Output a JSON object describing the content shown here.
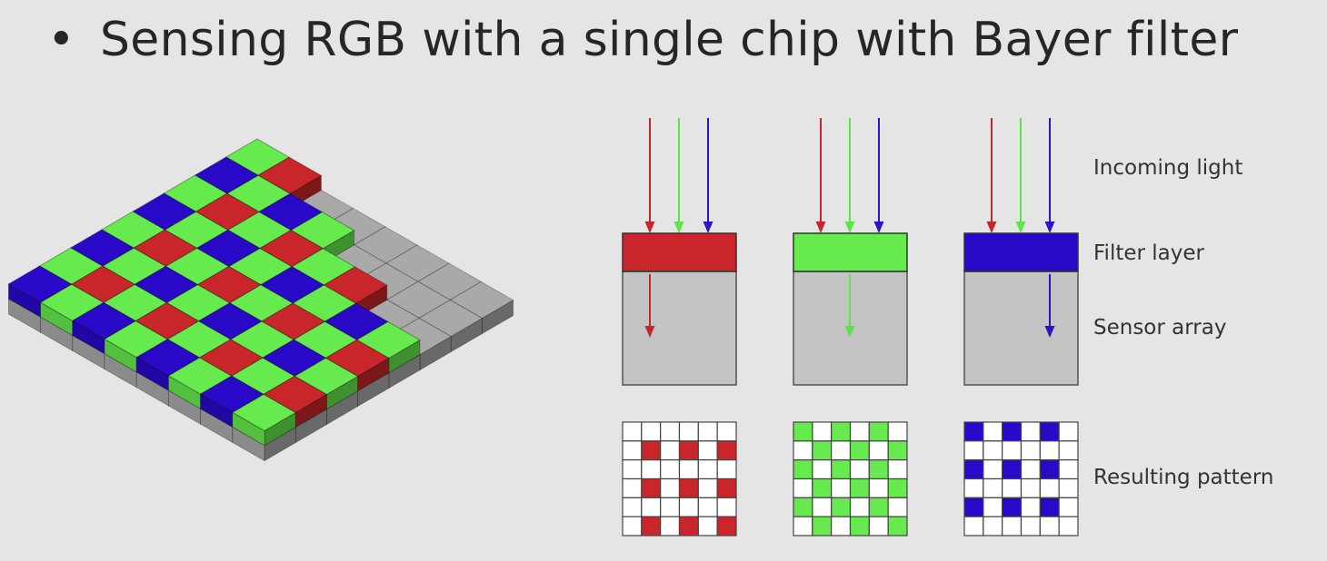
{
  "slide": {
    "bullet": "•",
    "title": "Sensing RGB with a single chip with Bayer filter"
  },
  "labels": {
    "incoming_light": "Incoming light",
    "filter_layer": "Filter layer",
    "sensor_array": "Sensor array",
    "resulting_pattern": "Resulting pattern"
  },
  "channels": [
    {
      "name": "red",
      "color": "#c8262a"
    },
    {
      "name": "green",
      "color": "#66ea4e"
    },
    {
      "name": "blue",
      "color": "#2a08c8"
    }
  ],
  "colors": {
    "red": "#c8262a",
    "green": "#66ea4e",
    "blue": "#2a08c8",
    "arrow_red": "#c1272d",
    "arrow_green": "#5fe34b",
    "arrow_blue": "#2b14c3",
    "sensor": "#c4c4c4",
    "substrate": "#a9a9a9",
    "background": "#e5e5e5"
  },
  "bayer_mosaic": {
    "grid_size": 8,
    "pattern": [
      [
        "green",
        "red"
      ],
      [
        "blue",
        "green"
      ]
    ]
  }
}
